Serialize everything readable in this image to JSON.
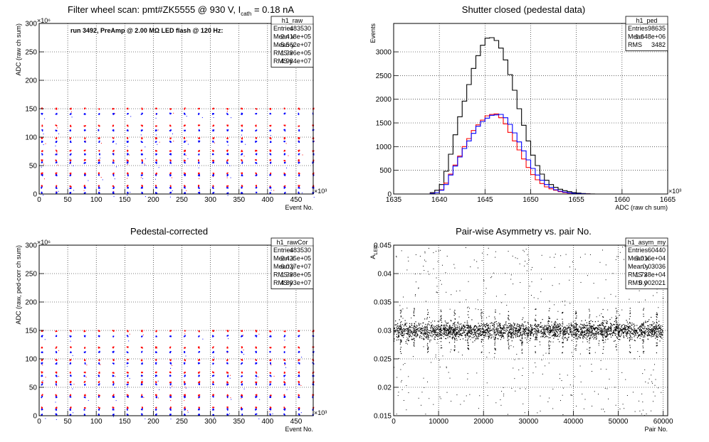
{
  "chart_data": [
    {
      "id": "raw",
      "type": "scatter",
      "title_parts": [
        "Filter wheel scan: pmt#ZK5555 @   930 V, I",
        "cath",
        " = 0.18 nA"
      ],
      "xlabel": "Event No.",
      "ylabel": "ADC (raw ch sum)",
      "x_exp": "×10³",
      "y_exp": "×10⁶",
      "xlim": [
        0,
        480
      ],
      "ylim": [
        0,
        300
      ],
      "x_ticks": [
        0,
        50,
        100,
        150,
        200,
        250,
        300,
        350,
        400,
        450
      ],
      "y_ticks": [
        0,
        50,
        100,
        150,
        200,
        250,
        300
      ],
      "grid": true,
      "note": "run 3492, PreAmp @ 2.00 MΩ LED flash @  120 Hz:",
      "period": 25,
      "levels": [
        {
          "y": 150,
          "color": "#ff0000"
        },
        {
          "y": 141,
          "color": "#0000ff"
        },
        {
          "y": 120,
          "color": "#ff0000"
        },
        {
          "y": 112,
          "color": "#0000ff"
        },
        {
          "y": 98,
          "color": "#ff0000"
        },
        {
          "y": 92,
          "color": "#0000ff"
        },
        {
          "y": 76,
          "color": "#ff0000"
        },
        {
          "y": 70,
          "color": "#0000ff"
        },
        {
          "y": 59,
          "color": "#ff0000"
        },
        {
          "y": 55,
          "color": "#0000ff"
        },
        {
          "y": 36,
          "color": "#ff0000"
        },
        {
          "y": 33,
          "color": "#0000ff"
        },
        {
          "y": 14,
          "color": "#ff0000"
        },
        {
          "y": 11,
          "color": "#0000ff"
        },
        {
          "y": 2,
          "color": "#0000ff"
        }
      ],
      "stats_title": "h1_raw",
      "stats": [
        {
          "label": "Entries",
          "value": "483530"
        },
        {
          "label": "Mean x",
          "value": "2.418e+05"
        },
        {
          "label": "Mean y",
          "value": "5.562e+07"
        },
        {
          "label": "RMS x",
          "value": "1.396e+05"
        },
        {
          "label": "RMS y",
          "value": "4.984e+07"
        }
      ]
    },
    {
      "id": "ped",
      "type": "histogram",
      "title": "Shutter closed (pedestal data)",
      "xlabel": "ADC (raw ch sum)",
      "ylabel": "Events",
      "x_exp": "×10³",
      "xlim": [
        1635,
        1665
      ],
      "ylim": [
        0,
        3600
      ],
      "x_ticks": [
        1635,
        1640,
        1645,
        1650,
        1655,
        1660,
        1665
      ],
      "y_ticks": [
        0,
        500,
        1000,
        1500,
        2000,
        2500,
        3000
      ],
      "grid": true,
      "bin_start": 1638.5,
      "bin_width": 0.5,
      "series": [
        {
          "name": "",
          "color": "#000000",
          "values": [
            0,
            30,
            80,
            200,
            480,
            840,
            1250,
            1630,
            1960,
            2310,
            2650,
            2920,
            3140,
            3290,
            3300,
            3240,
            3080,
            2830,
            2520,
            2190,
            1800,
            1450,
            1120,
            820,
            600,
            420,
            290,
            200,
            140,
            100,
            70,
            50,
            30,
            20,
            10,
            5,
            2
          ]
        },
        {
          "name": "",
          "color": "#ff0000",
          "values": [
            0,
            10,
            30,
            90,
            230,
            420,
            610,
            800,
            1000,
            1170,
            1340,
            1460,
            1560,
            1650,
            1680,
            1690,
            1610,
            1480,
            1300,
            1120,
            930,
            740,
            560,
            410,
            300,
            220,
            150,
            110,
            80,
            50,
            30,
            20,
            10,
            5,
            2,
            1,
            0
          ]
        },
        {
          "name": "",
          "color": "#0000ff",
          "values": [
            0,
            10,
            30,
            80,
            200,
            400,
            590,
            780,
            960,
            1120,
            1280,
            1430,
            1530,
            1600,
            1660,
            1670,
            1680,
            1610,
            1470,
            1290,
            1100,
            910,
            720,
            540,
            400,
            290,
            200,
            140,
            90,
            60,
            40,
            25,
            15,
            8,
            4,
            2,
            0
          ]
        }
      ],
      "stats_title": "h1_ped",
      "stats": [
        {
          "label": "Entries",
          "value": "98635"
        },
        {
          "label": "Mean",
          "value": "1.648e+06"
        },
        {
          "label": "RMS",
          "value": "3482"
        }
      ]
    },
    {
      "id": "rawCor",
      "type": "scatter",
      "title": "Pedestal-corrected",
      "xlabel": "Event No.",
      "ylabel": "ADC (raw, ped-corr ch sum)",
      "x_exp": "×10³",
      "y_exp": "×10⁶",
      "xlim": [
        0,
        480
      ],
      "ylim": [
        0,
        300
      ],
      "x_ticks": [
        0,
        50,
        100,
        150,
        200,
        250,
        300,
        350,
        400,
        450
      ],
      "y_ticks": [
        0,
        50,
        100,
        150,
        200,
        250,
        300
      ],
      "grid": true,
      "period": 25,
      "levels": [
        {
          "y": 149,
          "color": "#ff0000"
        },
        {
          "y": 140,
          "color": "#0000ff"
        },
        {
          "y": 120,
          "color": "#ff0000"
        },
        {
          "y": 112,
          "color": "#0000ff"
        },
        {
          "y": 98,
          "color": "#ff0000"
        },
        {
          "y": 92,
          "color": "#0000ff"
        },
        {
          "y": 76,
          "color": "#ff0000"
        },
        {
          "y": 70,
          "color": "#0000ff"
        },
        {
          "y": 59,
          "color": "#ff0000"
        },
        {
          "y": 55,
          "color": "#0000ff"
        },
        {
          "y": 36,
          "color": "#ff0000"
        },
        {
          "y": 33,
          "color": "#0000ff"
        },
        {
          "y": 14,
          "color": "#ff0000"
        },
        {
          "y": 11,
          "color": "#0000ff"
        },
        {
          "y": 2,
          "color": "#0000ff"
        }
      ],
      "stats_title": "h1_rawCor",
      "stats": [
        {
          "label": "Entries",
          "value": "483530"
        },
        {
          "label": "Mean x",
          "value": "2.425e+05"
        },
        {
          "label": "Mean y",
          "value": "6.027e+07"
        },
        {
          "label": "RMS x",
          "value": "1.398e+05"
        },
        {
          "label": "RMS y",
          "value": "4.893e+07"
        }
      ]
    },
    {
      "id": "asym",
      "type": "scatter",
      "title": "Pair-wise Asymmetry vs. pair No.",
      "xlabel": "Pair No.",
      "ylabel": "A",
      "ylabel_sub": "LED",
      "xlim": [
        0,
        61000
      ],
      "ylim": [
        0.015,
        0.045
      ],
      "x_ticks": [
        0,
        10000,
        20000,
        30000,
        40000,
        50000,
        60000
      ],
      "y_ticks": [
        0.015,
        0.02,
        0.025,
        0.03,
        0.035,
        0.04,
        0.045
      ],
      "grid": true,
      "band_center": 0.03,
      "band_halfwidth": 0.0008,
      "spike_period": 3000,
      "color": "#000000",
      "stats_title": "h1_asym_my",
      "stats": [
        {
          "label": "Entries",
          "value": "60440"
        },
        {
          "label": "Mean x",
          "value": "3.016e+04"
        },
        {
          "label": "Mean y",
          "value": "0.03036"
        },
        {
          "label": "RMS x",
          "value": "1.738e+04"
        },
        {
          "label": "RMS y",
          "value": "0.002021"
        }
      ]
    }
  ]
}
